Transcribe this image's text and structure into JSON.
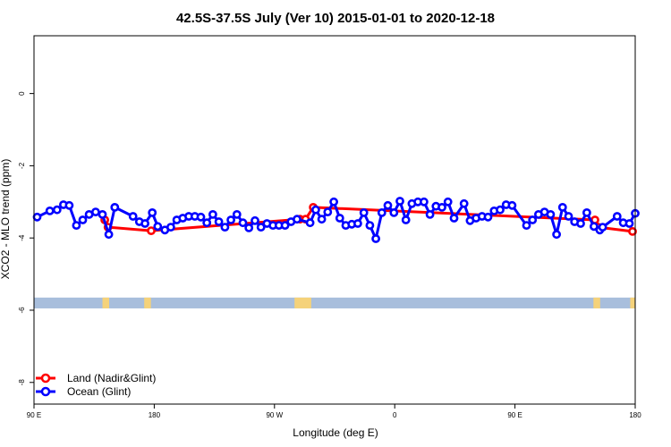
{
  "chart_data": {
    "type": "line",
    "title": "42.5S-37.5S July (Ver 10)   2015-01-01 to 2020-12-18",
    "xlabel": "Longitude (deg E)",
    "ylabel": "XCO2 - MLO trend (ppm)",
    "xlim": [
      90,
      450
    ],
    "ylim": [
      -8.6,
      1.6
    ],
    "x_ticks": [
      {
        "value": 90,
        "label": "90 E"
      },
      {
        "value": 162,
        "label": "180"
      },
      {
        "value": 234,
        "label": "90 W"
      },
      {
        "value": 306,
        "label": "0"
      },
      {
        "value": 378,
        "label": "90 E"
      },
      {
        "value": 450,
        "label": "180"
      }
    ],
    "y_ticks": [
      {
        "value": 0,
        "label": "0"
      },
      {
        "value": -2,
        "label": "-2"
      },
      {
        "value": -4,
        "label": "-4"
      },
      {
        "value": -6,
        "label": "-6"
      },
      {
        "value": -8,
        "label": "-8"
      }
    ],
    "legend_position": "bottom-left",
    "land_band": {
      "y_range": [
        -5.95,
        -5.65
      ],
      "ocean_color": "#a8bedc",
      "land_color": "#f5d27a",
      "land_spans": [
        [
          131,
          135
        ],
        [
          156,
          160
        ],
        [
          246,
          256
        ],
        [
          425,
          429
        ],
        [
          447,
          450
        ]
      ]
    },
    "series": [
      {
        "name": "Land (Nadir&Glint)",
        "color": "#ff0000",
        "x": [
          132.4,
          134.3,
          160.2,
          249.3,
          252.6,
          257.2,
          425.9,
          427.8,
          448.4
        ],
        "y": [
          -3.5,
          -3.7,
          -3.8,
          -3.48,
          -3.48,
          -3.15,
          -3.5,
          -3.7,
          -3.82
        ]
      },
      {
        "name": "Ocean (Glint)",
        "color": "#0000ff",
        "x": [
          91.9,
          99.5,
          103.8,
          107.6,
          111.1,
          115.4,
          119.2,
          123.0,
          126.9,
          131.0,
          134.8,
          138.4,
          149.3,
          153.1,
          156.5,
          160.8,
          164.1,
          168.4,
          171.9,
          175.5,
          179.1,
          182.7,
          186.3,
          189.9,
          193.5,
          197.1,
          200.7,
          204.3,
          207.9,
          211.5,
          215.1,
          218.7,
          222.3,
          225.9,
          229.5,
          233.1,
          236.7,
          240.3,
          243.9,
          247.5,
          255.3,
          258.7,
          262.3,
          265.9,
          269.5,
          273.1,
          276.7,
          280.3,
          283.9,
          287.5,
          291.1,
          294.7,
          298.3,
          301.9,
          305.5,
          309.1,
          312.7,
          316.3,
          319.9,
          323.5,
          327.1,
          330.7,
          334.3,
          337.9,
          341.5,
          347.5,
          351.1,
          354.7,
          358.3,
          361.9,
          365.5,
          369.1,
          372.7,
          376.3,
          384.9,
          388.5,
          392.1,
          395.7,
          399.3,
          402.9,
          406.5,
          410.1,
          413.7,
          417.3,
          421.0,
          425.3,
          428.8,
          430.5,
          439.2,
          442.8,
          446.5,
          450.0
        ],
        "y": [
          -3.42,
          -3.25,
          -3.22,
          -3.08,
          -3.1,
          -3.65,
          -3.5,
          -3.35,
          -3.28,
          -3.35,
          -3.9,
          -3.15,
          -3.4,
          -3.55,
          -3.6,
          -3.3,
          -3.68,
          -3.78,
          -3.7,
          -3.5,
          -3.45,
          -3.4,
          -3.4,
          -3.42,
          -3.58,
          -3.35,
          -3.55,
          -3.7,
          -3.5,
          -3.35,
          -3.58,
          -3.72,
          -3.52,
          -3.7,
          -3.6,
          -3.65,
          -3.65,
          -3.65,
          -3.55,
          -3.48,
          -3.58,
          -3.22,
          -3.48,
          -3.28,
          -3.0,
          -3.45,
          -3.65,
          -3.62,
          -3.6,
          -3.3,
          -3.65,
          -4.02,
          -3.3,
          -3.1,
          -3.3,
          -2.98,
          -3.5,
          -3.05,
          -3.0,
          -3.0,
          -3.35,
          -3.12,
          -3.15,
          -3.0,
          -3.45,
          -3.05,
          -3.52,
          -3.45,
          -3.4,
          -3.42,
          -3.25,
          -3.22,
          -3.08,
          -3.1,
          -3.65,
          -3.5,
          -3.35,
          -3.28,
          -3.35,
          -3.9,
          -3.15,
          -3.4,
          -3.55,
          -3.6,
          -3.3,
          -3.68,
          -3.78,
          -3.7,
          -3.4,
          -3.58,
          -3.6,
          -3.32
        ]
      }
    ]
  }
}
